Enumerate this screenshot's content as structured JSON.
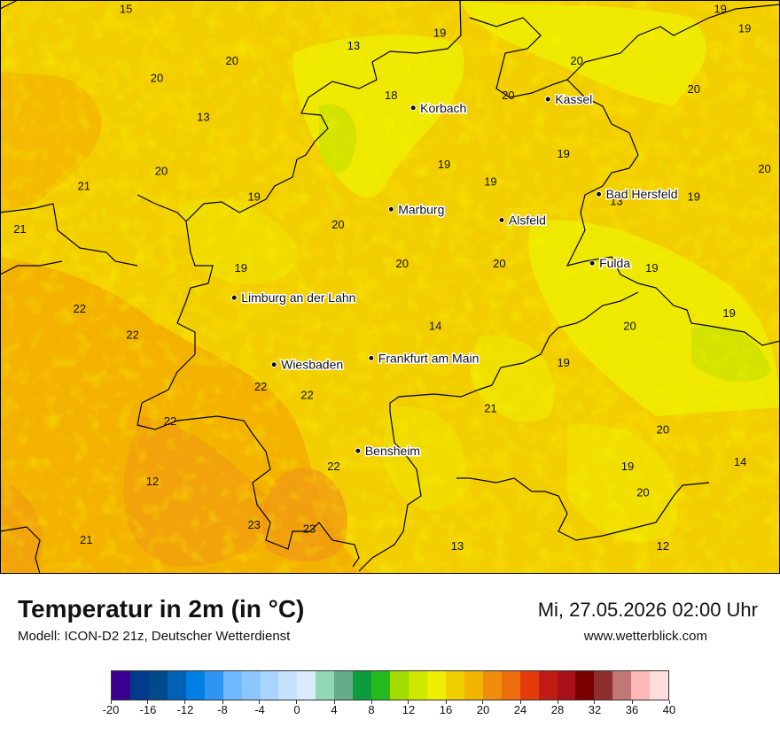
{
  "title": "Temperatur in 2m (in °C)",
  "model": "Modell: ICON-D2 21z, Deutscher Wetterdienst",
  "datetime": "Mi, 27.05.2026 02:00 Uhr",
  "site": "www.wetterblick.com",
  "colors": {
    "base": "#f2cd00",
    "warm": "#f5ad00",
    "hot": "#f08a1a",
    "cool": "#eef000",
    "cooler": "#c8e800",
    "coolest": "#a8e000",
    "label": "#111111"
  },
  "cities": [
    {
      "name": "Kassel",
      "lon": 9.48,
      "lat": 51.31
    },
    {
      "name": "Korbach",
      "lon": 8.87,
      "lat": 51.27
    },
    {
      "name": "Bad Hersfeld",
      "lon": 9.71,
      "lat": 50.87
    },
    {
      "name": "Marburg",
      "lon": 8.77,
      "lat": 50.8
    },
    {
      "name": "Alsfeld",
      "lon": 9.27,
      "lat": 50.75
    },
    {
      "name": "Fulda",
      "lon": 9.68,
      "lat": 50.55
    },
    {
      "name": "Limburg an der Lahn",
      "lon": 8.06,
      "lat": 50.39
    },
    {
      "name": "Frankfurt am Main",
      "lon": 8.68,
      "lat": 50.11
    },
    {
      "name": "Wiesbaden",
      "lon": 8.24,
      "lat": 50.08
    },
    {
      "name": "Bensheim",
      "lon": 8.62,
      "lat": 49.68
    }
  ],
  "values": [
    {
      "v": "15",
      "lon": 7.57,
      "lat": 51.71
    },
    {
      "v": "19",
      "lon": 10.26,
      "lat": 51.71
    },
    {
      "v": "19",
      "lon": 10.37,
      "lat": 51.62
    },
    {
      "v": "13",
      "lon": 8.6,
      "lat": 51.54
    },
    {
      "v": "19",
      "lon": 8.99,
      "lat": 51.6
    },
    {
      "v": "20",
      "lon": 8.05,
      "lat": 51.47
    },
    {
      "v": "20",
      "lon": 9.61,
      "lat": 51.47
    },
    {
      "v": "20",
      "lon": 7.71,
      "lat": 51.39
    },
    {
      "v": "20",
      "lon": 9.3,
      "lat": 51.31
    },
    {
      "v": "20",
      "lon": 10.14,
      "lat": 51.34
    },
    {
      "v": "18",
      "lon": 8.77,
      "lat": 51.31
    },
    {
      "v": "13",
      "lon": 7.92,
      "lat": 51.21
    },
    {
      "v": "19",
      "lon": 9.55,
      "lat": 51.04
    },
    {
      "v": "19",
      "lon": 9.01,
      "lat": 50.99
    },
    {
      "v": "20",
      "lon": 10.46,
      "lat": 50.97
    },
    {
      "v": "20",
      "lon": 7.73,
      "lat": 50.96
    },
    {
      "v": "21",
      "lon": 7.38,
      "lat": 50.89
    },
    {
      "v": "19",
      "lon": 9.22,
      "lat": 50.91
    },
    {
      "v": "19",
      "lon": 8.15,
      "lat": 50.84
    },
    {
      "v": "13",
      "lon": 9.79,
      "lat": 50.82
    },
    {
      "v": "19",
      "lon": 10.14,
      "lat": 50.84
    },
    {
      "v": "20",
      "lon": 8.53,
      "lat": 50.71
    },
    {
      "v": "21",
      "lon": 7.09,
      "lat": 50.69
    },
    {
      "v": "20",
      "lon": 8.82,
      "lat": 50.53
    },
    {
      "v": "20",
      "lon": 9.26,
      "lat": 50.53
    },
    {
      "v": "19",
      "lon": 8.09,
      "lat": 50.51
    },
    {
      "v": "19",
      "lon": 9.95,
      "lat": 50.51
    },
    {
      "v": "22",
      "lon": 7.36,
      "lat": 50.32
    },
    {
      "v": "19",
      "lon": 10.3,
      "lat": 50.3
    },
    {
      "v": "22",
      "lon": 7.6,
      "lat": 50.2
    },
    {
      "v": "14",
      "lon": 8.97,
      "lat": 50.24
    },
    {
      "v": "20",
      "lon": 9.85,
      "lat": 50.24
    },
    {
      "v": "19",
      "lon": 9.55,
      "lat": 50.07
    },
    {
      "v": "22",
      "lon": 8.18,
      "lat": 49.96
    },
    {
      "v": "22",
      "lon": 8.39,
      "lat": 49.92
    },
    {
      "v": "21",
      "lon": 9.22,
      "lat": 49.86
    },
    {
      "v": "22",
      "lon": 7.77,
      "lat": 49.8
    },
    {
      "v": "20",
      "lon": 10.0,
      "lat": 49.76
    },
    {
      "v": "14",
      "lon": 10.35,
      "lat": 49.61
    },
    {
      "v": "19",
      "lon": 9.84,
      "lat": 49.59
    },
    {
      "v": "22",
      "lon": 8.51,
      "lat": 49.59
    },
    {
      "v": "12",
      "lon": 7.69,
      "lat": 49.52
    },
    {
      "v": "20",
      "lon": 9.91,
      "lat": 49.47
    },
    {
      "v": "23",
      "lon": 8.15,
      "lat": 49.32
    },
    {
      "v": "23",
      "lon": 8.4,
      "lat": 49.3
    },
    {
      "v": "21",
      "lon": 7.39,
      "lat": 49.25
    },
    {
      "v": "13",
      "lon": 9.07,
      "lat": 49.22
    },
    {
      "v": "12",
      "lon": 10.0,
      "lat": 49.22
    }
  ],
  "legend": {
    "ticks": [
      "-20",
      "-16",
      "-12",
      "-8",
      "-4",
      "0",
      "4",
      "8",
      "12",
      "16",
      "20",
      "24",
      "28",
      "32",
      "36",
      "40"
    ],
    "colors": [
      "#3a0090",
      "#003a8c",
      "#004a8a",
      "#0061b5",
      "#0080e5",
      "#2f95f5",
      "#70b8ff",
      "#8cc6ff",
      "#a8d4ff",
      "#c6e2ff",
      "#dcebfc",
      "#92d8b8",
      "#63ad8a",
      "#0b9c3c",
      "#24b91c",
      "#a3dc00",
      "#cfe800",
      "#eef000",
      "#f2d000",
      "#f2b400",
      "#f08d0d",
      "#ed6c0b",
      "#e33b0a",
      "#c01b14",
      "#a8101a",
      "#7a0000",
      "#8e2e2e",
      "#c27777",
      "#fdb9b9",
      "#ffdddd"
    ]
  }
}
